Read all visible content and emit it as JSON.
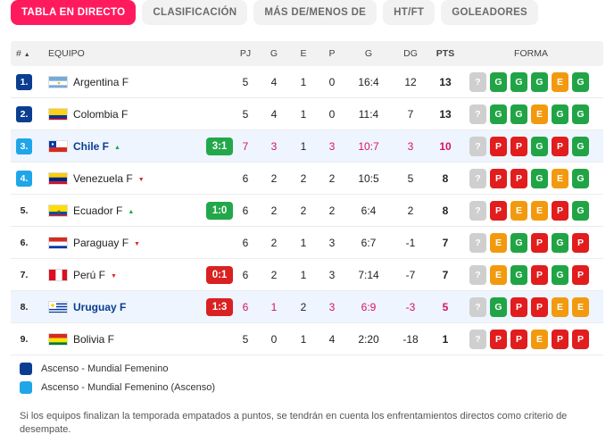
{
  "tabs": [
    {
      "label": "TABLA EN DIRECTO",
      "active": true
    },
    {
      "label": "CLASIFICACIÓN",
      "active": false
    },
    {
      "label": "MÁS DE/MENOS DE",
      "active": false
    },
    {
      "label": "HT/FT",
      "active": false
    },
    {
      "label": "GOLEADORES",
      "active": false
    }
  ],
  "headers": {
    "rank": "#",
    "team": "EQUIPO",
    "pj": "PJ",
    "g": "G",
    "e": "E",
    "p": "P",
    "goals": "G",
    "dg": "DG",
    "pts": "PTS",
    "form": "FORMA"
  },
  "colors": {
    "accent": "#ff1a5e",
    "promo": "#0b3d91",
    "promo2": "#1fa6e8",
    "win": "#21a446",
    "draw": "#f29a0f",
    "loss": "#e11d1d"
  },
  "rows": [
    {
      "pos": "1.",
      "q": "q1",
      "flag": "argentina",
      "team": "Argentina F",
      "trend": "",
      "live": false,
      "score": "",
      "result": "",
      "pj": "5",
      "g": "4",
      "e": "1",
      "p": "0",
      "goals": "16:4",
      "dg": "12",
      "pts": "13",
      "form": [
        "?",
        "G",
        "G",
        "G",
        "E",
        "G"
      ]
    },
    {
      "pos": "2.",
      "q": "q1",
      "flag": "colombia",
      "team": "Colombia F",
      "trend": "",
      "live": false,
      "score": "",
      "result": "",
      "pj": "5",
      "g": "4",
      "e": "1",
      "p": "0",
      "goals": "11:4",
      "dg": "7",
      "pts": "13",
      "form": [
        "?",
        "G",
        "G",
        "E",
        "G",
        "G"
      ]
    },
    {
      "pos": "3.",
      "q": "q2",
      "flag": "chile",
      "team": "Chile F",
      "trend": "up",
      "live": true,
      "score": "3:1",
      "result": "win",
      "pj": "7",
      "g": "3",
      "e": "1",
      "p": "3",
      "goals": "10:7",
      "dg": "3",
      "pts": "10",
      "form": [
        "?",
        "P",
        "P",
        "G",
        "P",
        "G"
      ]
    },
    {
      "pos": "4.",
      "q": "q2",
      "flag": "venezuela",
      "team": "Venezuela F",
      "trend": "down",
      "live": false,
      "score": "",
      "result": "",
      "pj": "6",
      "g": "2",
      "e": "2",
      "p": "2",
      "goals": "10:5",
      "dg": "5",
      "pts": "8",
      "form": [
        "?",
        "P",
        "P",
        "G",
        "E",
        "G"
      ]
    },
    {
      "pos": "5.",
      "q": "",
      "flag": "ecuador",
      "team": "Ecuador F",
      "trend": "up",
      "live": false,
      "score": "1:0",
      "result": "win",
      "pj": "6",
      "g": "2",
      "e": "2",
      "p": "2",
      "goals": "6:4",
      "dg": "2",
      "pts": "8",
      "form": [
        "?",
        "P",
        "E",
        "E",
        "P",
        "G"
      ]
    },
    {
      "pos": "6.",
      "q": "",
      "flag": "paraguay",
      "team": "Paraguay F",
      "trend": "down",
      "live": false,
      "score": "",
      "result": "",
      "pj": "6",
      "g": "2",
      "e": "1",
      "p": "3",
      "goals": "6:7",
      "dg": "-1",
      "pts": "7",
      "form": [
        "?",
        "E",
        "G",
        "P",
        "G",
        "P"
      ]
    },
    {
      "pos": "7.",
      "q": "",
      "flag": "peru",
      "team": "Perú F",
      "trend": "down",
      "live": false,
      "score": "0:1",
      "result": "lose",
      "pj": "6",
      "g": "2",
      "e": "1",
      "p": "3",
      "goals": "7:14",
      "dg": "-7",
      "pts": "7",
      "form": [
        "?",
        "E",
        "G",
        "P",
        "G",
        "P"
      ]
    },
    {
      "pos": "8.",
      "q": "",
      "flag": "uruguay",
      "team": "Uruguay F",
      "trend": "",
      "live": true,
      "score": "1:3",
      "result": "lose",
      "pj": "6",
      "g": "1",
      "e": "2",
      "p": "3",
      "goals": "6:9",
      "dg": "-3",
      "pts": "5",
      "form": [
        "?",
        "G",
        "P",
        "P",
        "E",
        "E"
      ]
    },
    {
      "pos": "9.",
      "q": "",
      "flag": "bolivia",
      "team": "Bolivia F",
      "trend": "",
      "live": false,
      "score": "",
      "result": "",
      "pj": "5",
      "g": "0",
      "e": "1",
      "p": "4",
      "goals": "2:20",
      "dg": "-18",
      "pts": "1",
      "form": [
        "?",
        "P",
        "P",
        "E",
        "P",
        "P"
      ]
    }
  ],
  "legend": [
    {
      "label": "Ascenso - Mundial Femenino",
      "color": "#0b3d91"
    },
    {
      "label": "Ascenso - Mundial Femenino (Ascenso)",
      "color": "#1fa6e8"
    }
  ],
  "note": "Si los equipos finalizan la temporada empatados a puntos, se tendrán en cuenta los enfrentamientos directos como criterio de desempate."
}
